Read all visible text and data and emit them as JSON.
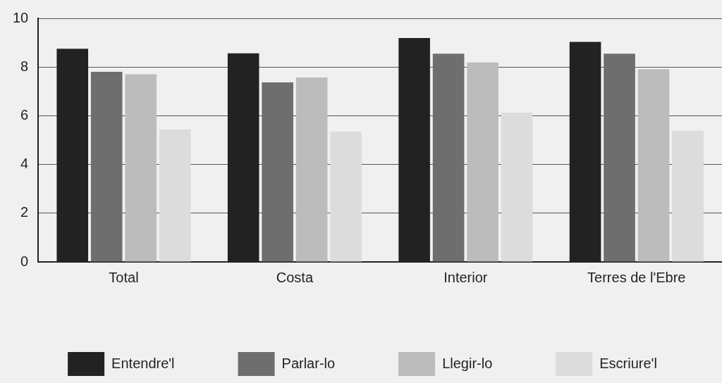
{
  "chart_data": {
    "type": "bar",
    "categories": [
      "Total",
      "Costa",
      "Interior",
      "Terres de l'Ebre"
    ],
    "series": [
      {
        "name": "Entendre'l",
        "color": "#222222",
        "values": [
          8.75,
          8.56,
          9.19,
          9.03
        ]
      },
      {
        "name": "Parlar-lo",
        "color": "#6e6e6e",
        "values": [
          7.8,
          7.37,
          8.55,
          8.55
        ]
      },
      {
        "name": "Llegir-lo",
        "color": "#bcbcbc",
        "values": [
          7.7,
          7.57,
          8.19,
          7.91
        ]
      },
      {
        "name": "Escriure'l",
        "color": "#dcdcdc",
        "values": [
          5.43,
          5.35,
          6.13,
          5.38
        ]
      }
    ],
    "ylim": [
      0,
      10
    ],
    "yticks": [
      0,
      2,
      4,
      6,
      8,
      10
    ],
    "grid": "y",
    "legend": "bottom"
  }
}
